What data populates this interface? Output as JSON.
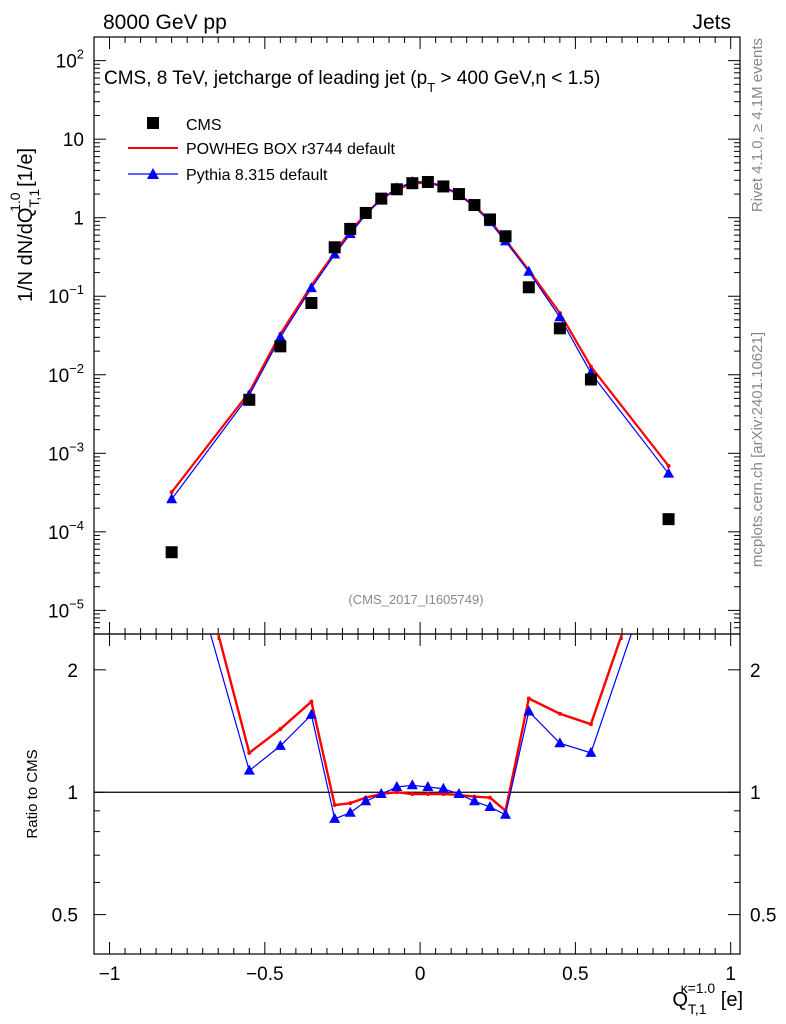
{
  "header": {
    "left": "8000 GeV pp",
    "right": "Jets"
  },
  "side": {
    "rivet": "Rivet 4.1.0, ≥ 4.1M events",
    "mcplots": "mcplots.cern.ch [arXiv:2401.10621]"
  },
  "analysis_id": "(CMS_2017_I1605749)",
  "title": {
    "pre": "CMS, 8 TeV, jetcharge of leading jet (p",
    "sub": "T",
    "post": " > 400 GeV,η < 1.5)"
  },
  "ylabel": {
    "main": "1/N dN/dQ",
    "sub": "T,1",
    "sup": "1.0",
    "unit": " [1/e]"
  },
  "ratio_ylabel": "Ratio to CMS",
  "xlabel": {
    "main": "Q",
    "sub": "T,1",
    "sup": "κ=1.0",
    "unit": " [e]"
  },
  "legend": [
    {
      "label": "CMS",
      "color": "#000000",
      "marker": "square"
    },
    {
      "label": "POWHEG BOX r3744 default",
      "color": "#ff0000",
      "marker": "line"
    },
    {
      "label": "Pythia 8.315 default",
      "color": "#0000ff",
      "marker": "triangle"
    }
  ],
  "chart_data": [
    {
      "type": "scatter",
      "title": "CMS, 8 TeV, jetcharge of leading jet (pT > 400 GeV,η < 1.5)",
      "xlabel": "Q_T,1^κ=1.0 [e]",
      "ylabel": "1/N dN/dQ_T,1^1.0 [1/e]",
      "yscale": "log",
      "xlim": [
        -1.05,
        1.03
      ],
      "ylim": [
        5e-06,
        200
      ],
      "x_ticks": [
        "−1",
        "−0.5",
        "0",
        "0.5",
        "1"
      ],
      "y_ticks": [
        "10⁻⁵",
        "10⁻⁴",
        "10⁻³",
        "10⁻²",
        "10⁻¹",
        "1",
        "10",
        "10²"
      ],
      "series": [
        {
          "name": "CMS",
          "color": "#000000",
          "x": [
            -0.8,
            -0.55,
            -0.45,
            -0.35,
            -0.275,
            -0.225,
            -0.175,
            -0.125,
            -0.075,
            -0.025,
            0.025,
            0.075,
            0.125,
            0.175,
            0.225,
            0.275,
            0.35,
            0.45,
            0.55,
            0.8
          ],
          "y": [
            5.5e-05,
            0.0048,
            0.023,
            0.082,
            0.42,
            0.72,
            1.15,
            1.75,
            2.3,
            2.75,
            2.85,
            2.5,
            2.0,
            1.45,
            0.95,
            0.58,
            0.13,
            0.039,
            0.0087,
            0.000145
          ]
        },
        {
          "name": "POWHEG BOX r3744 default",
          "color": "#ff0000",
          "x": [
            -0.8,
            -0.55,
            -0.45,
            -0.35,
            -0.275,
            -0.225,
            -0.175,
            -0.125,
            -0.075,
            -0.025,
            0.025,
            0.075,
            0.125,
            0.175,
            0.225,
            0.275,
            0.35,
            0.45,
            0.55,
            0.8
          ],
          "y": [
            0.00032,
            0.006,
            0.033,
            0.137,
            0.36,
            0.67,
            1.12,
            1.73,
            2.3,
            2.72,
            2.8,
            2.48,
            1.97,
            1.41,
            0.92,
            0.52,
            0.215,
            0.061,
            0.0127,
            0.00069
          ]
        },
        {
          "name": "Pythia 8.315 default",
          "color": "#0000ff",
          "x": [
            -0.8,
            -0.55,
            -0.45,
            -0.35,
            -0.275,
            -0.225,
            -0.175,
            -0.125,
            -0.075,
            -0.025,
            0.025,
            0.075,
            0.125,
            0.175,
            0.225,
            0.275,
            0.35,
            0.45,
            0.55,
            0.8
          ],
          "y": [
            0.00026,
            0.0055,
            0.03,
            0.127,
            0.34,
            0.62,
            1.09,
            1.72,
            2.37,
            2.85,
            2.88,
            2.52,
            1.99,
            1.38,
            0.88,
            0.5,
            0.205,
            0.054,
            0.0105,
            0.00055
          ]
        }
      ]
    },
    {
      "type": "line",
      "title": "Ratio to CMS",
      "ylabel": "Ratio to CMS",
      "yscale": "log",
      "xlim": [
        -1.05,
        1.03
      ],
      "ylim": [
        0.4,
        2.45
      ],
      "y_ticks": [
        "0.5",
        "1",
        "2"
      ],
      "reference_line": 1,
      "series": [
        {
          "name": "POWHEG BOX r3744 default",
          "color": "#ff0000",
          "x": [
            -0.65,
            -0.55,
            -0.45,
            -0.35,
            -0.275,
            -0.225,
            -0.175,
            -0.125,
            -0.075,
            -0.025,
            0.025,
            0.075,
            0.125,
            0.175,
            0.225,
            0.275,
            0.35,
            0.45,
            0.55,
            0.65
          ],
          "y": [
            2.45,
            1.25,
            1.43,
            1.67,
            0.93,
            0.94,
            0.97,
            0.99,
            1.0,
            0.99,
            0.99,
            0.99,
            0.985,
            0.975,
            0.97,
            0.9,
            1.7,
            1.56,
            1.47,
            2.45
          ]
        },
        {
          "name": "Pythia 8.315 default",
          "color": "#0000ff",
          "x": [
            -0.675,
            -0.55,
            -0.45,
            -0.35,
            -0.275,
            -0.225,
            -0.175,
            -0.125,
            -0.075,
            -0.025,
            0.025,
            0.075,
            0.125,
            0.175,
            0.225,
            0.275,
            0.35,
            0.45,
            0.55,
            0.68
          ],
          "y": [
            2.45,
            1.13,
            1.3,
            1.55,
            0.86,
            0.89,
            0.95,
            0.99,
            1.03,
            1.04,
            1.03,
            1.02,
            0.99,
            0.95,
            0.92,
            0.88,
            1.58,
            1.32,
            1.25,
            2.45
          ]
        }
      ]
    }
  ]
}
